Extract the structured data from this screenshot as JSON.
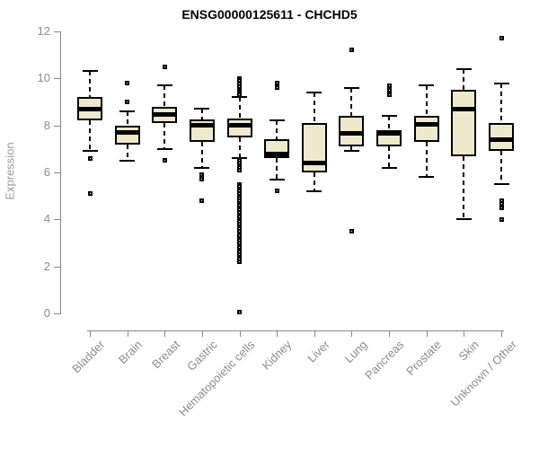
{
  "title": "ENSG00000125611 - CHCHD5",
  "chart_data": {
    "type": "boxplot",
    "title": "ENSG00000125611 - CHCHD5",
    "xlabel": "",
    "ylabel": "Expression",
    "ylim": [
      0,
      12
    ],
    "yticks": [
      0,
      2,
      4,
      6,
      8,
      10,
      12
    ],
    "grid": false,
    "legend": "none",
    "colors": {
      "box_fill": "#EEE8CD",
      "box_border": "#000000",
      "median": "#000000",
      "axis": "#878787",
      "tick_label": "#8c8c8c",
      "title": "#000000"
    },
    "categories": [
      "Bladder",
      "Brain",
      "Breast",
      "Gastric",
      "Hematopoietic cells",
      "Kidney",
      "Liver",
      "Lung",
      "Pancreas",
      "Prostate",
      "Skin",
      "Unknown / Other"
    ],
    "boxes": [
      {
        "category": "Bladder",
        "whisker_low": 6.9,
        "q1": 8.2,
        "median": 8.7,
        "q3": 9.2,
        "whisker_high": 10.3,
        "outliers": [
          6.6,
          5.1
        ]
      },
      {
        "category": "Brain",
        "whisker_low": 6.5,
        "q1": 7.2,
        "median": 7.7,
        "q3": 8.0,
        "whisker_high": 8.6,
        "outliers": [
          9.8,
          9.0
        ]
      },
      {
        "category": "Breast",
        "whisker_low": 7.0,
        "q1": 8.1,
        "median": 8.45,
        "q3": 8.8,
        "whisker_high": 9.7,
        "outliers": [
          10.5,
          6.5
        ]
      },
      {
        "category": "Gastric",
        "whisker_low": 6.2,
        "q1": 7.3,
        "median": 8.0,
        "q3": 8.25,
        "whisker_high": 8.7,
        "outliers": [
          5.9,
          5.7,
          4.8
        ]
      },
      {
        "category": "Hematopoietic cells",
        "whisker_low": 6.6,
        "q1": 7.5,
        "median": 8.0,
        "q3": 8.3,
        "whisker_high": 9.2,
        "outliers": [
          10.0,
          9.9,
          9.8,
          9.75,
          9.65,
          9.55,
          9.45,
          9.4,
          9.3,
          6.5,
          6.4,
          6.3,
          6.2,
          6.1,
          5.5,
          5.4,
          5.3,
          5.2,
          5.1,
          5.0,
          4.9,
          4.8,
          4.7,
          4.6,
          4.5,
          4.4,
          4.3,
          4.2,
          4.1,
          4.0,
          3.9,
          3.8,
          3.7,
          3.6,
          3.5,
          3.4,
          3.3,
          3.2,
          3.1,
          3.0,
          2.9,
          2.8,
          2.7,
          2.6,
          2.5,
          2.4,
          2.3,
          2.2,
          0.05
        ]
      },
      {
        "category": "Kidney",
        "whisker_low": 5.7,
        "q1": 6.6,
        "median": 6.8,
        "q3": 7.4,
        "whisker_high": 8.2,
        "outliers": [
          9.8,
          9.6,
          5.2
        ]
      },
      {
        "category": "Liver",
        "whisker_low": 5.2,
        "q1": 6.0,
        "median": 6.4,
        "q3": 8.1,
        "whisker_high": 9.4,
        "outliers": []
      },
      {
        "category": "Lung",
        "whisker_low": 6.9,
        "q1": 7.1,
        "median": 7.65,
        "q3": 8.4,
        "whisker_high": 9.6,
        "outliers": [
          11.2,
          3.5
        ]
      },
      {
        "category": "Pancreas",
        "whisker_low": 6.2,
        "q1": 7.1,
        "median": 7.65,
        "q3": 7.8,
        "whisker_high": 8.4,
        "outliers": [
          9.7,
          9.5,
          9.3
        ]
      },
      {
        "category": "Prostate",
        "whisker_low": 5.8,
        "q1": 7.3,
        "median": 8.05,
        "q3": 8.4,
        "whisker_high": 9.7,
        "outliers": []
      },
      {
        "category": "Skin",
        "whisker_low": 4.0,
        "q1": 6.7,
        "median": 8.7,
        "q3": 9.5,
        "whisker_high": 10.4,
        "outliers": []
      },
      {
        "category": "Unknown / Other",
        "whisker_low": 5.5,
        "q1": 6.9,
        "median": 7.4,
        "q3": 8.1,
        "whisker_high": 9.8,
        "outliers": [
          11.7,
          4.8,
          4.7,
          4.5,
          4.0
        ]
      }
    ]
  }
}
